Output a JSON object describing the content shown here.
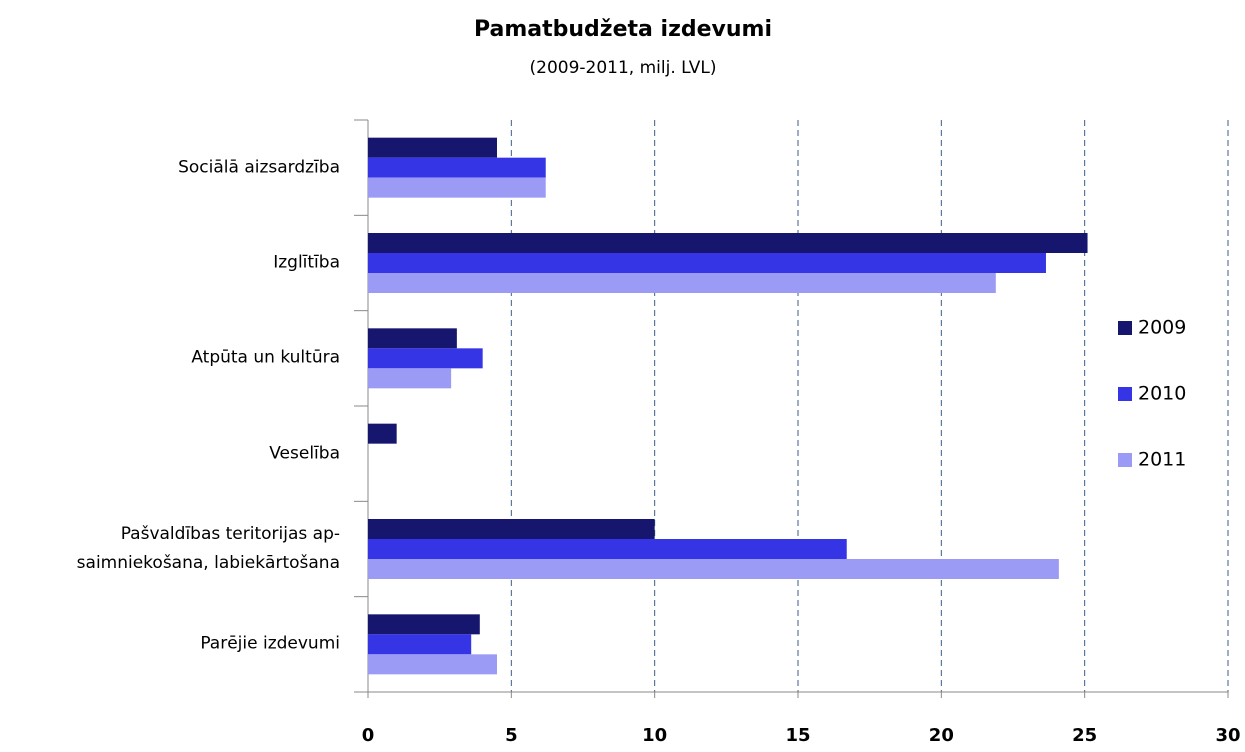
{
  "chart_data": {
    "type": "barh",
    "title": "Pamatbudžeta izdevumi",
    "subtitle": "(2009-2011, milj. LVL)",
    "categories": [
      "Sociālā aizsardzība",
      "Izglītība",
      "Atpūta un kultūra",
      "Veselība",
      "Pašvaldības teritorijas ap-\nsaimniekošana, labiekārtošana",
      "Parējie izdevumi"
    ],
    "series": [
      {
        "name": "2009",
        "color": "#16166e",
        "values": [
          4.5,
          25.1,
          3.1,
          1.0,
          10.0,
          3.9
        ]
      },
      {
        "name": "2010",
        "color": "#3535e6",
        "values": [
          6.2,
          23.65,
          4.0,
          0,
          16.7,
          3.6
        ]
      },
      {
        "name": "2011",
        "color": "#9b9bf6",
        "values": [
          6.2,
          21.9,
          2.9,
          0,
          24.1,
          4.5
        ]
      }
    ],
    "xlim": [
      0,
      30
    ],
    "xticks": [
      0,
      5,
      10,
      15,
      20,
      25,
      30
    ],
    "grid": true,
    "legend": "right"
  }
}
